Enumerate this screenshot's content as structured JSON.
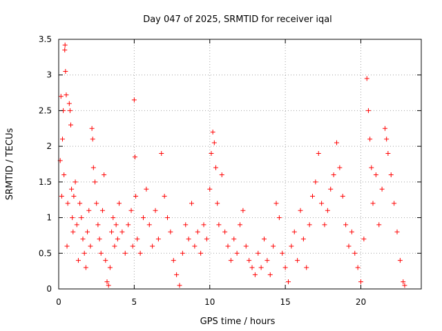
{
  "chart_data": {
    "type": "scatter",
    "title": "Day 047 of 2025, SRMTID for receiver iqal",
    "xlabel": "GPS time / hours",
    "ylabel": "SRMTID / TECUs",
    "xlim": [
      0,
      24
    ],
    "ylim": [
      0,
      3.5
    ],
    "xticks": [
      0,
      5,
      10,
      15,
      20
    ],
    "xtick_labels": [
      "0",
      "5",
      "10",
      "15",
      "20"
    ],
    "yticks": [
      0,
      0.5,
      1,
      1.5,
      2,
      2.5,
      3,
      3.5
    ],
    "ytick_labels": [
      "0",
      "0.5",
      "1",
      "1.5",
      "2",
      "2.5",
      "3",
      "3.5"
    ],
    "grid": true,
    "marker": "+",
    "color": "#ff0000",
    "series": [
      {
        "name": "SRMTID",
        "points": [
          [
            0.1,
            1.8
          ],
          [
            0.15,
            2.7
          ],
          [
            0.2,
            1.3
          ],
          [
            0.25,
            2.1
          ],
          [
            0.3,
            2.5
          ],
          [
            0.35,
            1.6
          ],
          [
            0.4,
            3.35
          ],
          [
            0.42,
            3.42
          ],
          [
            0.45,
            3.05
          ],
          [
            0.5,
            2.72
          ],
          [
            0.55,
            0.6
          ],
          [
            0.6,
            1.2
          ],
          [
            0.7,
            2.6
          ],
          [
            0.75,
            2.5
          ],
          [
            0.8,
            2.3
          ],
          [
            0.85,
            1.4
          ],
          [
            0.9,
            1.0
          ],
          [
            0.95,
            0.8
          ],
          [
            1.0,
            1.3
          ],
          [
            1.1,
            1.5
          ],
          [
            1.2,
            0.9
          ],
          [
            1.3,
            0.4
          ],
          [
            1.4,
            1.2
          ],
          [
            1.5,
            1.0
          ],
          [
            1.6,
            0.7
          ],
          [
            1.7,
            0.5
          ],
          [
            1.8,
            0.3
          ],
          [
            1.9,
            0.8
          ],
          [
            2.0,
            1.1
          ],
          [
            2.1,
            0.6
          ],
          [
            2.2,
            2.25
          ],
          [
            2.25,
            2.1
          ],
          [
            2.3,
            1.7
          ],
          [
            2.4,
            1.5
          ],
          [
            2.5,
            1.2
          ],
          [
            2.6,
            0.9
          ],
          [
            2.7,
            0.7
          ],
          [
            2.8,
            0.5
          ],
          [
            2.9,
            1.1
          ],
          [
            3.0,
            1.6
          ],
          [
            3.1,
            0.4
          ],
          [
            3.2,
            0.1
          ],
          [
            3.3,
            0.05
          ],
          [
            3.4,
            0.3
          ],
          [
            3.5,
            0.8
          ],
          [
            3.6,
            1.0
          ],
          [
            3.7,
            0.6
          ],
          [
            3.8,
            0.9
          ],
          [
            3.9,
            0.7
          ],
          [
            4.0,
            1.2
          ],
          [
            4.2,
            0.8
          ],
          [
            4.4,
            0.5
          ],
          [
            4.6,
            0.9
          ],
          [
            4.8,
            1.1
          ],
          [
            4.9,
            0.6
          ],
          [
            5.0,
            2.65
          ],
          [
            5.05,
            1.85
          ],
          [
            5.1,
            1.3
          ],
          [
            5.2,
            0.7
          ],
          [
            5.4,
            0.5
          ],
          [
            5.6,
            1.0
          ],
          [
            5.8,
            1.4
          ],
          [
            6.0,
            0.9
          ],
          [
            6.2,
            0.6
          ],
          [
            6.4,
            1.1
          ],
          [
            6.6,
            0.7
          ],
          [
            6.8,
            1.9
          ],
          [
            7.0,
            1.3
          ],
          [
            7.2,
            1.0
          ],
          [
            7.4,
            0.8
          ],
          [
            7.6,
            0.4
          ],
          [
            7.8,
            0.2
          ],
          [
            8.0,
            0.05
          ],
          [
            8.2,
            0.5
          ],
          [
            8.4,
            0.9
          ],
          [
            8.6,
            0.7
          ],
          [
            8.8,
            1.2
          ],
          [
            9.0,
            0.6
          ],
          [
            9.2,
            0.8
          ],
          [
            9.4,
            0.5
          ],
          [
            9.6,
            0.9
          ],
          [
            9.8,
            0.7
          ],
          [
            10.0,
            1.4
          ],
          [
            10.1,
            1.9
          ],
          [
            10.2,
            2.2
          ],
          [
            10.3,
            2.05
          ],
          [
            10.4,
            1.7
          ],
          [
            10.5,
            1.2
          ],
          [
            10.6,
            0.9
          ],
          [
            10.8,
            1.6
          ],
          [
            11.0,
            0.8
          ],
          [
            11.2,
            0.6
          ],
          [
            11.4,
            0.4
          ],
          [
            11.6,
            0.7
          ],
          [
            11.8,
            0.5
          ],
          [
            12.0,
            0.9
          ],
          [
            12.2,
            1.1
          ],
          [
            12.4,
            0.6
          ],
          [
            12.6,
            0.4
          ],
          [
            12.8,
            0.3
          ],
          [
            13.0,
            0.2
          ],
          [
            13.2,
            0.5
          ],
          [
            13.4,
            0.3
          ],
          [
            13.6,
            0.7
          ],
          [
            13.8,
            0.4
          ],
          [
            14.0,
            0.2
          ],
          [
            14.2,
            0.6
          ],
          [
            14.4,
            1.2
          ],
          [
            14.6,
            1.0
          ],
          [
            14.8,
            0.5
          ],
          [
            15.0,
            0.3
          ],
          [
            15.2,
            0.1
          ],
          [
            15.4,
            0.6
          ],
          [
            15.6,
            0.8
          ],
          [
            15.8,
            0.4
          ],
          [
            16.0,
            1.1
          ],
          [
            16.2,
            0.7
          ],
          [
            16.4,
            0.3
          ],
          [
            16.6,
            0.9
          ],
          [
            16.8,
            1.3
          ],
          [
            17.0,
            1.5
          ],
          [
            17.2,
            1.9
          ],
          [
            17.4,
            1.2
          ],
          [
            17.6,
            0.9
          ],
          [
            17.8,
            1.1
          ],
          [
            18.0,
            1.4
          ],
          [
            18.2,
            1.6
          ],
          [
            18.4,
            2.05
          ],
          [
            18.6,
            1.7
          ],
          [
            18.8,
            1.3
          ],
          [
            19.0,
            0.9
          ],
          [
            19.2,
            0.6
          ],
          [
            19.4,
            0.8
          ],
          [
            19.6,
            0.5
          ],
          [
            19.8,
            0.3
          ],
          [
            20.0,
            0.1
          ],
          [
            20.2,
            0.7
          ],
          [
            20.4,
            2.95
          ],
          [
            20.5,
            2.5
          ],
          [
            20.6,
            2.1
          ],
          [
            20.7,
            1.7
          ],
          [
            20.8,
            1.2
          ],
          [
            21.0,
            1.6
          ],
          [
            21.2,
            0.9
          ],
          [
            21.4,
            1.4
          ],
          [
            21.6,
            2.25
          ],
          [
            21.7,
            2.1
          ],
          [
            21.8,
            1.9
          ],
          [
            22.0,
            1.6
          ],
          [
            22.2,
            1.2
          ],
          [
            22.4,
            0.8
          ],
          [
            22.6,
            0.4
          ],
          [
            22.8,
            0.1
          ],
          [
            22.9,
            0.05
          ]
        ]
      }
    ]
  }
}
